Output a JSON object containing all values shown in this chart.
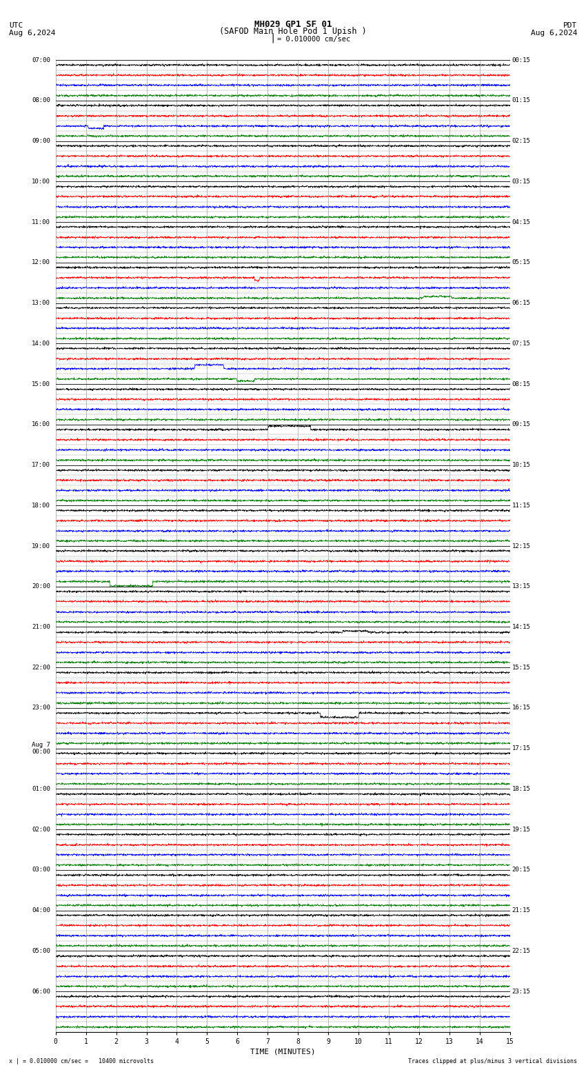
{
  "title_line1": "MH029 GP1 SF 01",
  "title_line2": "(SAFOD Main Hole Pod 1 Upish )",
  "scale_label": "| = 0.010000 cm/sec",
  "left_header": "UTC",
  "left_date": "Aug 6,2024",
  "right_header": "PDT",
  "right_date": "Aug 6,2024",
  "footer_left": "x | = 0.010000 cm/sec =   10400 microvolts",
  "footer_right": "Traces clipped at plus/minus 3 vertical divisions",
  "xlabel": "TIME (MINUTES)",
  "xmin": 0,
  "xmax": 15,
  "xticks": [
    0,
    1,
    2,
    3,
    4,
    5,
    6,
    7,
    8,
    9,
    10,
    11,
    12,
    13,
    14,
    15
  ],
  "utc_labels": [
    "07:00",
    "08:00",
    "09:00",
    "10:00",
    "11:00",
    "12:00",
    "13:00",
    "14:00",
    "15:00",
    "16:00",
    "17:00",
    "18:00",
    "19:00",
    "20:00",
    "21:00",
    "22:00",
    "23:00",
    "Aug 7\n00:00",
    "01:00",
    "02:00",
    "03:00",
    "04:00",
    "05:00",
    "06:00"
  ],
  "pdt_labels": [
    "00:15",
    "01:15",
    "02:15",
    "03:15",
    "04:15",
    "05:15",
    "06:15",
    "07:15",
    "08:15",
    "09:15",
    "10:15",
    "11:15",
    "12:15",
    "13:15",
    "14:15",
    "15:15",
    "16:15",
    "17:15",
    "18:15",
    "19:15",
    "20:15",
    "21:15",
    "22:15",
    "23:15"
  ],
  "trace_colors": [
    "black",
    "red",
    "blue",
    "green"
  ],
  "bg_color": "#ffffff",
  "grid_color": "#888888",
  "num_rows": 24,
  "traces_per_row": 4,
  "noise_seed": 42,
  "trace_noise_scale": 0.012,
  "event_probability": 0.08,
  "n_points": 2000
}
